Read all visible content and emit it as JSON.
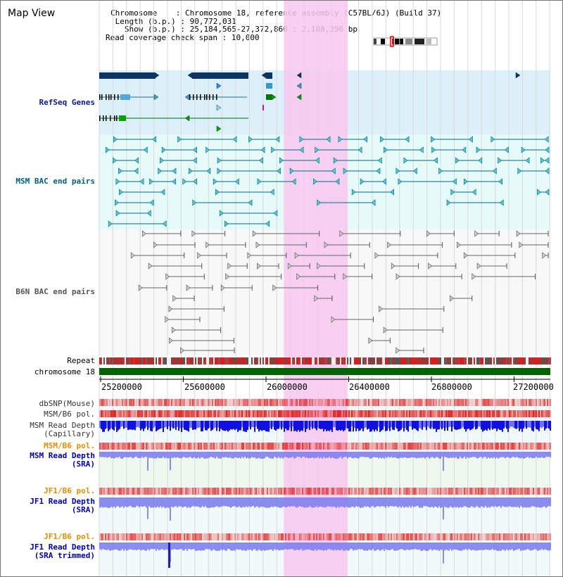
{
  "title": "Map View",
  "header": {
    "chromosome_label": "Chromosome",
    "chromosome_value": "Chromosome 18, reference assembly (C57BL/6J) (Build 37)",
    "length_label": "Length (b.p.)",
    "length_value": "90,772,031",
    "show_label": "Show (b.p.)",
    "show_value": "25,184,565-27,372,860 : 2,188,296 bp",
    "coverage_label": "Read coverage check span",
    "coverage_value": "10,000"
  },
  "tracks": {
    "refseq": "RefSeq Genes",
    "msm_bac": "MSM BAC end pairs",
    "b6n_bac": "B6N BAC end pairs",
    "repeat": "Repeat",
    "chromosome": "chromosome 18",
    "dbsnp": "dbSNP(Mouse)",
    "msm_b6_pol_1": "MSM/B6 pol.",
    "msm_read_depth_cap_1": "MSM Read Depth",
    "msm_read_depth_cap_2": "(Capillary)",
    "msm_b6_pol_2": "MSM/B6 pol.",
    "msm_read_depth_sra_1": "MSM Read Depth",
    "msm_read_depth_sra_2": "(SRA)",
    "jf1_b6_pol_1": "JF1/B6 pol.",
    "jf1_read_depth_sra_1": "JF1 Read Depth",
    "jf1_read_depth_sra_2": "(SRA)",
    "jf1_b6_pol_2": "JF1/B6 pol.",
    "jf1_read_depth_trim_1": "JF1 Read Depth",
    "jf1_read_depth_trim_2": "(SRA trimmed)"
  },
  "axis": {
    "ticks": [
      "25200000",
      "25600000",
      "26000000",
      "26400000",
      "26800000",
      "27200000"
    ]
  },
  "colors": {
    "refseq_label": "#0a1a9a",
    "msm_label": "#00607a",
    "b6n_label": "#555555",
    "orange_label": "#e09000",
    "blue_label": "#0000aa",
    "highlight": "#f8c8ee",
    "chromosome_bar": "#006400",
    "depth_blue": "#1010e0",
    "depth_light": "#8080ee"
  },
  "highlight_region": {
    "start_bp": 26080000,
    "end_bp": 26390000
  }
}
